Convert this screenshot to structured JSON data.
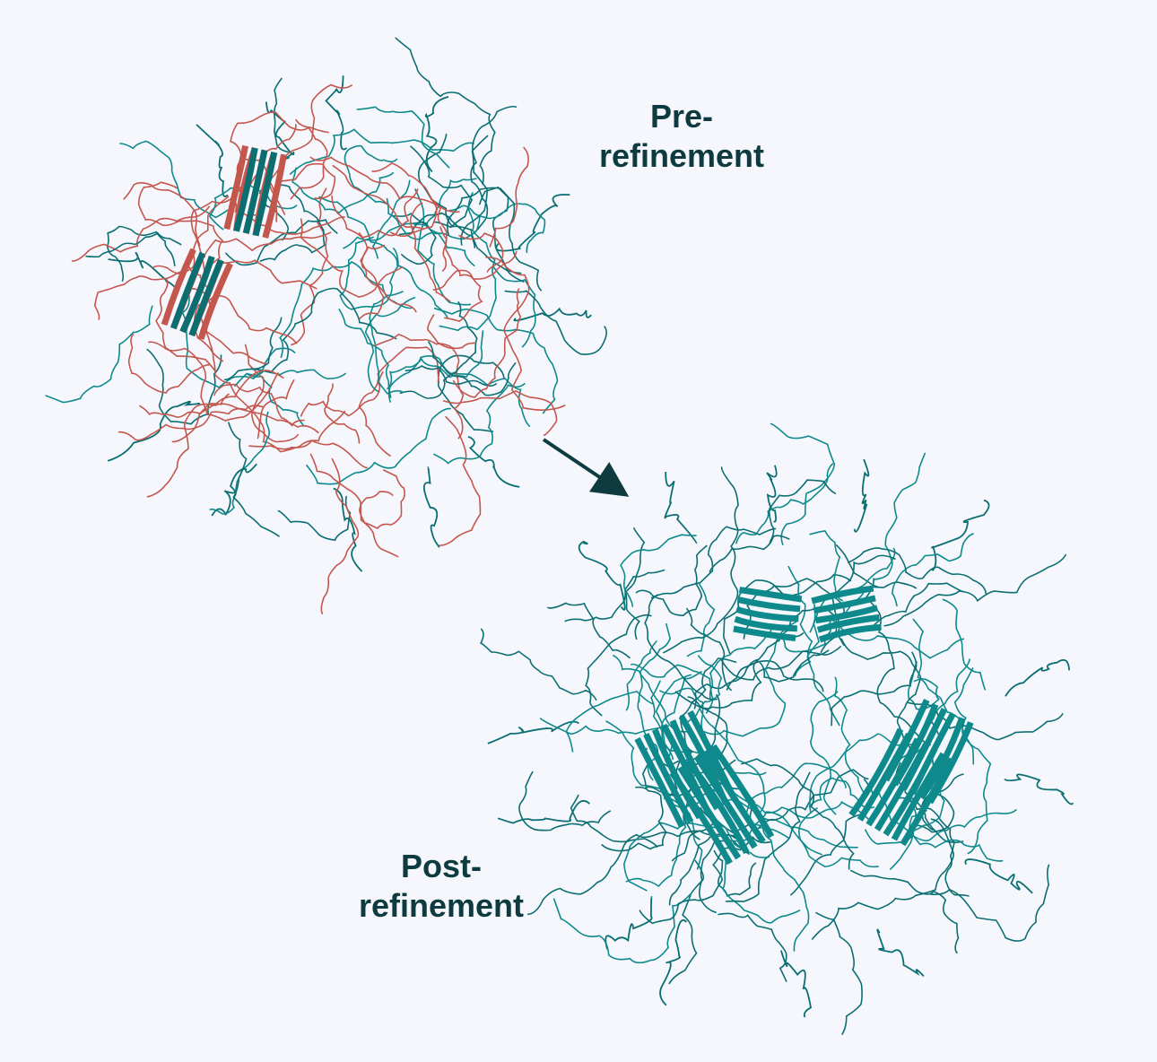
{
  "labels": {
    "pre_line1": "Pre-",
    "pre_line2": "refinement",
    "post_line1": "Post-",
    "post_line2": "refinement"
  },
  "colors": {
    "background": "#f5f7fd",
    "teal": "#0e8a8c",
    "teal_dark": "#0b6f72",
    "salmon": "#c4574d",
    "text": "#0d3b3f",
    "arrow": "#0d3b3f"
  },
  "structures": [
    {
      "name": "pre-refinement-structure",
      "tint": "teal+salmon"
    },
    {
      "name": "post-refinement-structure",
      "tint": "teal"
    }
  ]
}
